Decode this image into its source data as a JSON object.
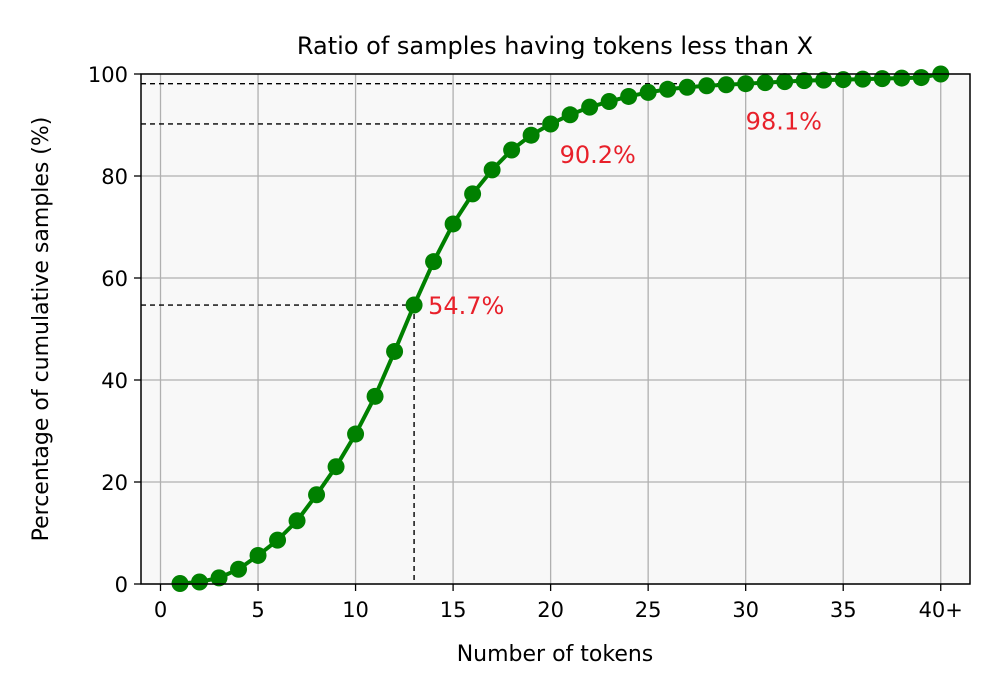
{
  "chart_data": {
    "type": "line",
    "title": "Ratio of samples having tokens less than X",
    "xlabel": "Number of tokens",
    "ylabel": "Percentage of cumulative samples (%)",
    "xlim": [
      -1,
      41.5
    ],
    "ylim": [
      0,
      100
    ],
    "xticks": [
      {
        "value": 0,
        "label": "0"
      },
      {
        "value": 5,
        "label": "5"
      },
      {
        "value": 10,
        "label": "10"
      },
      {
        "value": 15,
        "label": "15"
      },
      {
        "value": 20,
        "label": "20"
      },
      {
        "value": 25,
        "label": "25"
      },
      {
        "value": 30,
        "label": "30"
      },
      {
        "value": 35,
        "label": "35"
      },
      {
        "value": 40,
        "label": "40+"
      }
    ],
    "yticks": [
      {
        "value": 0,
        "label": "0"
      },
      {
        "value": 20,
        "label": "20"
      },
      {
        "value": 40,
        "label": "40"
      },
      {
        "value": 60,
        "label": "60"
      },
      {
        "value": 80,
        "label": "80"
      },
      {
        "value": 100,
        "label": "100"
      }
    ],
    "grid": true,
    "series": [
      {
        "color": "#008000",
        "x": [
          1,
          2,
          3,
          4,
          5,
          6,
          7,
          8,
          9,
          10,
          11,
          12,
          13,
          14,
          15,
          16,
          17,
          18,
          19,
          20,
          21,
          22,
          23,
          24,
          25,
          26,
          27,
          28,
          29,
          30,
          31,
          32,
          33,
          34,
          35,
          36,
          37,
          38,
          39,
          40
        ],
        "y": [
          0.1,
          0.4,
          1.2,
          2.9,
          5.6,
          8.6,
          12.4,
          17.5,
          23.0,
          29.4,
          36.8,
          45.6,
          54.7,
          63.2,
          70.6,
          76.5,
          81.2,
          85.1,
          88.0,
          90.2,
          92.0,
          93.5,
          94.6,
          95.6,
          96.4,
          97.0,
          97.4,
          97.7,
          97.9,
          98.1,
          98.3,
          98.5,
          98.7,
          98.8,
          98.9,
          99.0,
          99.1,
          99.2,
          99.3,
          100.0
        ]
      }
    ],
    "annotations": [
      {
        "text": "54.7%",
        "x": 13,
        "y": 54.7,
        "color": "#e8202a"
      },
      {
        "text": "90.2%",
        "x": 20,
        "y": 90.2,
        "color": "#e8202a"
      },
      {
        "text": "98.1%",
        "x": 30,
        "y": 98.1,
        "color": "#e8202a"
      }
    ]
  }
}
